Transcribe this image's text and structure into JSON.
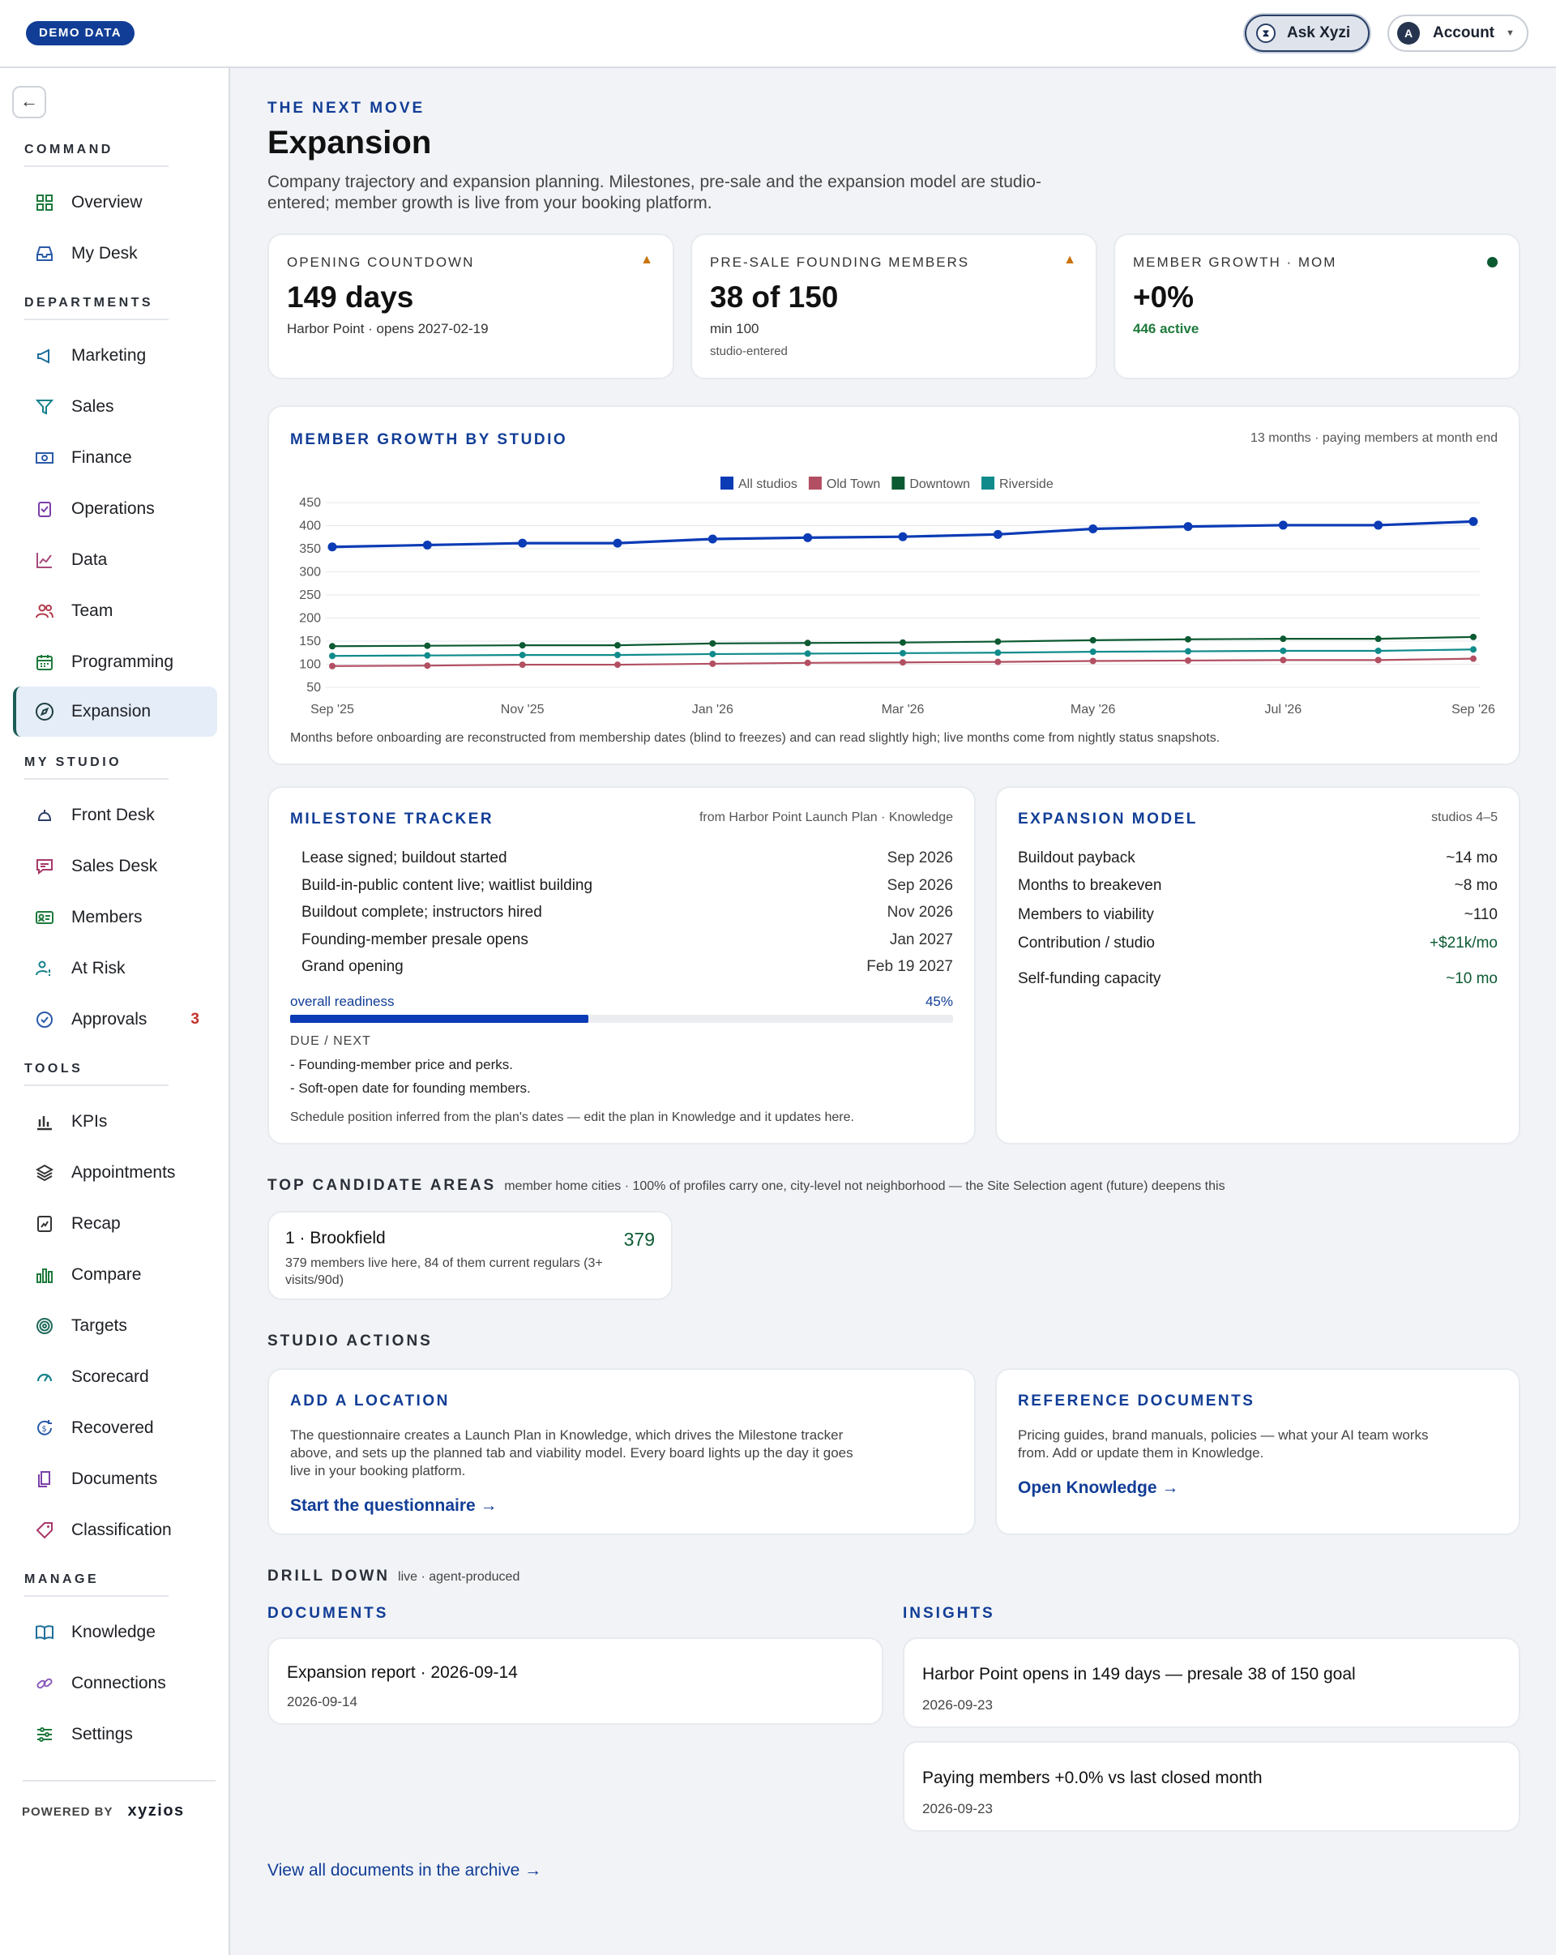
{
  "topbar": {
    "demo_label": "DEMO DATA",
    "ask_label": "Ask Xyzi",
    "account_label": "Account",
    "account_initial": "A"
  },
  "sidebar": {
    "sections": {
      "command": "COMMAND",
      "departments": "DEPARTMENTS",
      "my_studio": "MY STUDIO",
      "tools": "TOOLS",
      "manage": "MANAGE"
    },
    "items": {
      "overview": "Overview",
      "mydesk": "My Desk",
      "marketing": "Marketing",
      "sales": "Sales",
      "finance": "Finance",
      "operations": "Operations",
      "data": "Data",
      "team": "Team",
      "programming": "Programming",
      "expansion": "Expansion",
      "frontdesk": "Front Desk",
      "salesdesk": "Sales Desk",
      "members": "Members",
      "atrisk": "At Risk",
      "approvals": "Approvals",
      "approvals_count": "3",
      "kpis": "KPIs",
      "appointments": "Appointments",
      "recap": "Recap",
      "compare": "Compare",
      "targets": "Targets",
      "scorecard": "Scorecard",
      "recovered": "Recovered",
      "documents": "Documents",
      "classification": "Classification",
      "knowledge": "Knowledge",
      "connections": "Connections",
      "settings": "Settings"
    },
    "powered_by": "POWERED BY",
    "brand": "xyzios"
  },
  "header": {
    "kicker": "THE NEXT MOVE",
    "title": "Expansion",
    "subtitle_1": "Company trajectory and expansion planning. Milestones, pre-sale and the expansion model are studio-",
    "subtitle_2": "entered; member growth is live from your booking platform."
  },
  "stats": [
    {
      "label": "OPENING COUNTDOWN",
      "value": "149 days",
      "sub": "Harbor Point · opens 2027-02-19",
      "sub2": "",
      "status": "warning"
    },
    {
      "label": "PRE-SALE FOUNDING MEMBERS",
      "value": "38 of 150",
      "sub": "min 100",
      "sub2": "studio-entered",
      "status": "warning"
    },
    {
      "label": "MEMBER GROWTH · MOM",
      "value": "+0%",
      "sub": "446 active",
      "sub2": "",
      "status": "ok"
    }
  ],
  "growth": {
    "title": "MEMBER GROWTH BY STUDIO",
    "meta": "13 months · paying members at month end",
    "note": "Months before onboarding are reconstructed from membership dates (blind to freezes) and can read slightly high; live months come from nightly status snapshots."
  },
  "chart_data": {
    "type": "line",
    "x": [
      "Sep '25",
      "Oct '25",
      "Nov '25",
      "Dec '25",
      "Jan '26",
      "Feb '26",
      "Mar '26",
      "Apr '26",
      "May '26",
      "Jun '26",
      "Jul '26",
      "Aug '26",
      "Sep '26"
    ],
    "x_tick_labels": [
      "Sep '25",
      "Nov '25",
      "Jan '26",
      "Mar '26",
      "May '26",
      "Jul '26",
      "Sep '26"
    ],
    "y_ticks": [
      50,
      100,
      150,
      200,
      250,
      300,
      350,
      400,
      450
    ],
    "ylim": [
      50,
      450
    ],
    "legend_position": "top-center",
    "grid": true,
    "series": [
      {
        "name": "All studios",
        "color": "#0b3bb5",
        "values": [
          354,
          358,
          362,
          362,
          371,
          374,
          376,
          381,
          393,
          398,
          401,
          401,
          409
        ]
      },
      {
        "name": "Old Town",
        "color": "#b24f62",
        "values": [
          96,
          97,
          99,
          99,
          101,
          103,
          104,
          105,
          107,
          108,
          109,
          109,
          112
        ]
      },
      {
        "name": "Downtown",
        "color": "#0c5a32",
        "values": [
          139,
          140,
          141,
          141,
          145,
          146,
          147,
          149,
          152,
          154,
          155,
          155,
          159
        ]
      },
      {
        "name": "Riverside",
        "color": "#108b8b",
        "values": [
          118,
          119,
          120,
          120,
          122,
          123,
          124,
          125,
          127,
          128,
          129,
          129,
          132
        ]
      }
    ]
  },
  "milestones": {
    "title": "MILESTONE TRACKER",
    "meta": "from Harbor Point Launch Plan · Knowledge",
    "items": [
      {
        "label": "Lease signed; buildout started",
        "date": "Sep 2026"
      },
      {
        "label": "Build-in-public content live; waitlist building",
        "date": "Sep 2026"
      },
      {
        "label": "Buildout complete; instructors hired",
        "date": "Nov 2026"
      },
      {
        "label": "Founding-member presale opens",
        "date": "Jan 2027"
      },
      {
        "label": "Grand opening",
        "date": "Feb 19 2027"
      }
    ],
    "readiness_label": "overall readiness",
    "readiness_text": "45%",
    "readiness_value": 0.45,
    "due_label": "DUE / NEXT",
    "due_items": [
      "- Founding-member price and perks.",
      "- Soft-open date for founding members."
    ],
    "note": "Schedule position inferred from the plan's dates — edit the plan in Knowledge and it updates here."
  },
  "model": {
    "title": "EXPANSION MODEL",
    "meta": "studios 4–5",
    "items": [
      {
        "label": "Buildout payback",
        "value": "~14 mo",
        "accent": false
      },
      {
        "label": "Months to breakeven",
        "value": "~8 mo",
        "accent": false
      },
      {
        "label": "Members to viability",
        "value": "~110",
        "accent": false
      },
      {
        "label": "Contribution / studio",
        "value": "+$21k/mo",
        "accent": true
      },
      {
        "label": "Self-funding capacity",
        "value": "~10 mo",
        "accent": true
      }
    ]
  },
  "candidates": {
    "title": "TOP CANDIDATE AREAS",
    "meta": "member home cities · 100% of profiles carry one, city-level not neighborhood — the Site Selection agent (future) deepens this",
    "items": [
      {
        "name": "1 · Brookfield",
        "count": "379",
        "desc_1": "379 members live here, 84 of them current regulars (3+",
        "desc_2": "visits/90d)"
      }
    ]
  },
  "actions": {
    "title": "STUDIO ACTIONS",
    "add": {
      "title": "ADD A LOCATION",
      "desc_1": "The questionnaire creates a Launch Plan in Knowledge, which drives the Milestone tracker",
      "desc_2": "above, and sets up the planned tab and viability model. Every board lights up the day it goes",
      "desc_3": "live in your booking platform.",
      "link": "Start the questionnaire →"
    },
    "ref": {
      "title": "REFERENCE DOCUMENTS",
      "desc_1": "Pricing guides, brand manuals, policies — what your AI team works",
      "desc_2": "from. Add or update them in Knowledge.",
      "link": "Open Knowledge →"
    }
  },
  "drill": {
    "title": "DRILL DOWN",
    "meta": "live · agent-produced",
    "docs_title": "DOCUMENTS",
    "insights_title": "INSIGHTS",
    "docs": [
      {
        "title": "Expansion report · 2026-09-14",
        "date": "2026-09-14"
      }
    ],
    "insights": [
      {
        "title": "Harbor Point opens in 149 days — presale 38 of 150 goal",
        "date": "2026-09-23"
      },
      {
        "title": "Paying members +0.0% vs last closed month",
        "date": "2026-09-23"
      }
    ],
    "archive_link": "View all documents in the archive →"
  },
  "colors": {
    "accent": "#113d96",
    "warning": "#c9730a",
    "ok": "#0c5a32",
    "danger": "#c2332b"
  }
}
